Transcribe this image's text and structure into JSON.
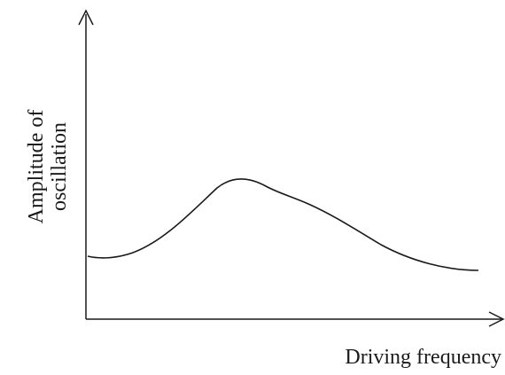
{
  "figure": {
    "y_axis_label_line1": "Amplitude of",
    "y_axis_label_line2": "oscillation",
    "x_axis_label": "Driving frequency",
    "curve_color": "#1a1a1a",
    "axis_color": "#1a1a1a"
  }
}
